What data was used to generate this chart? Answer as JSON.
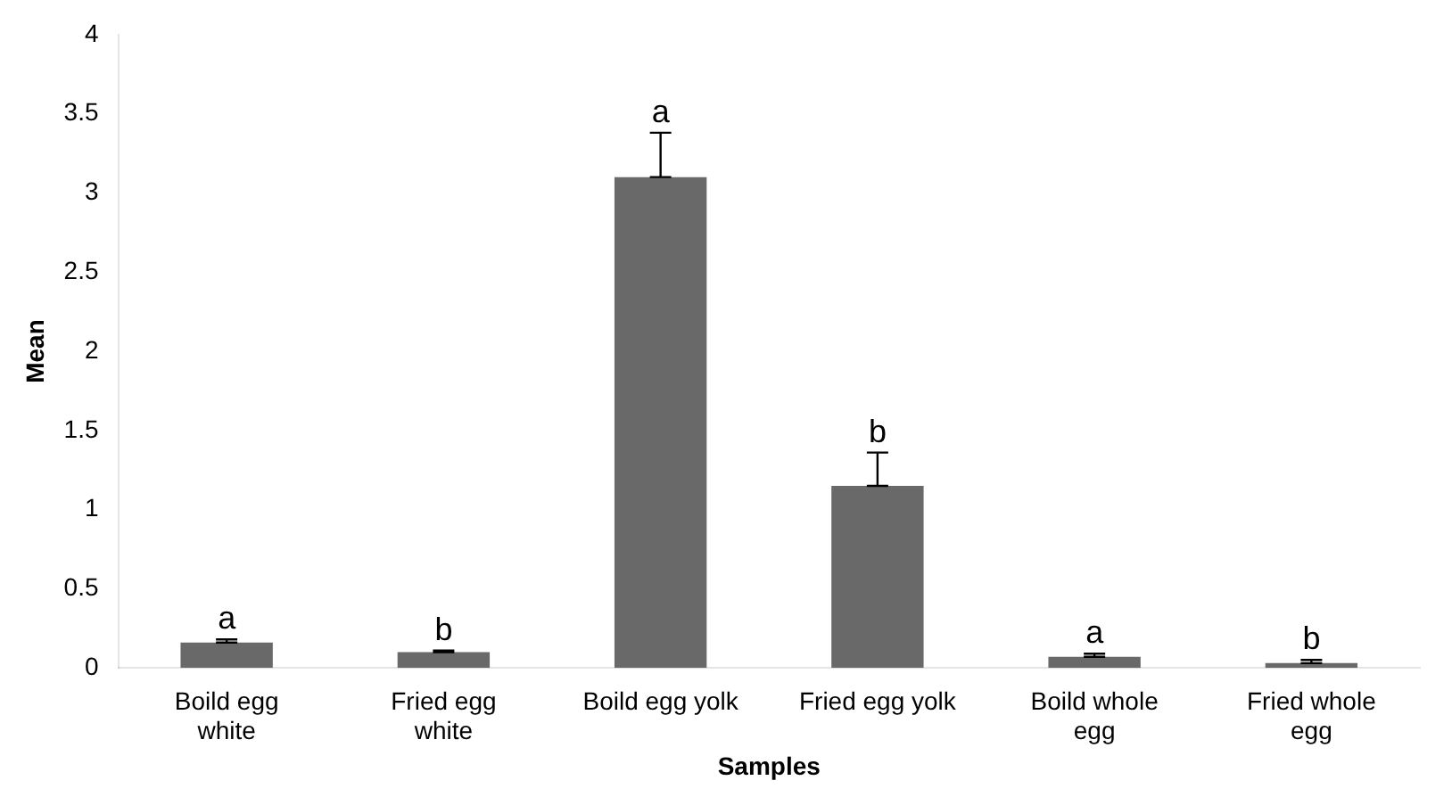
{
  "chart_data": {
    "type": "bar",
    "xlabel": "Samples",
    "ylabel": "Mean",
    "categories": [
      "Boild egg white",
      "Fried egg white",
      "Boild egg yolk",
      "Fried egg yolk",
      "Boild whole egg",
      "Fried whole egg"
    ],
    "values": [
      0.16,
      0.1,
      3.1,
      1.15,
      0.07,
      0.03
    ],
    "errors": [
      [
        0.16,
        0.18
      ],
      [
        0.1,
        0.11
      ],
      [
        3.1,
        3.38
      ],
      [
        1.15,
        1.36
      ],
      [
        0.07,
        0.09
      ],
      [
        0.03,
        0.05
      ]
    ],
    "color": "#696969",
    "ylim": [
      0,
      4
    ],
    "yticks": [
      0,
      0.5,
      1,
      1.5,
      2,
      2.5,
      3,
      3.5,
      4
    ],
    "grid": false,
    "legend": false,
    "annotations": [
      {
        "text": "a",
        "x": "Boild egg white",
        "y": 0.18
      },
      {
        "text": "b",
        "x": "Fried egg white",
        "y": 0.11
      },
      {
        "text": "a",
        "x": "Boild egg yolk",
        "y": 3.38
      },
      {
        "text": "b",
        "x": "Fried egg yolk",
        "y": 1.36
      },
      {
        "text": "a",
        "x": "Boild whole egg",
        "y": 0.09
      },
      {
        "text": "b",
        "x": "Fried whole egg",
        "y": 0.05
      }
    ]
  }
}
